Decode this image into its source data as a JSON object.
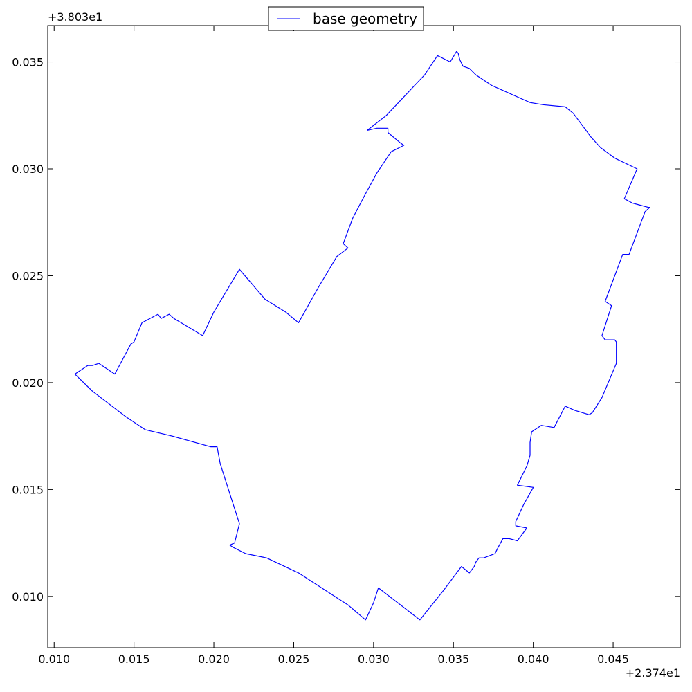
{
  "chart_data": {
    "type": "line",
    "title": "",
    "xlabel": "",
    "ylabel": "",
    "x_offset_label": "+2.374e1",
    "y_offset_label": "+3.803e1",
    "xlim": [
      0.0096,
      0.0492
    ],
    "ylim": [
      0.0076,
      0.0367
    ],
    "xticks": [
      0.01,
      0.015,
      0.02,
      0.025,
      0.03,
      0.035,
      0.04,
      0.045
    ],
    "xtick_labels": [
      "0.010",
      "0.015",
      "0.020",
      "0.025",
      "0.030",
      "0.035",
      "0.040",
      "0.045"
    ],
    "yticks": [
      0.01,
      0.015,
      0.02,
      0.025,
      0.03,
      0.035
    ],
    "ytick_labels": [
      "0.010",
      "0.015",
      "0.020",
      "0.025",
      "0.030",
      "0.035"
    ],
    "grid": false,
    "legend": {
      "position": "top-center"
    },
    "series": [
      {
        "name": "base geometry",
        "color": "#0000ff",
        "points": [
          [
            0.0113,
            0.0204
          ],
          [
            0.0121,
            0.0208
          ],
          [
            0.0124,
            0.0208
          ],
          [
            0.0128,
            0.0209
          ],
          [
            0.0138,
            0.0204
          ],
          [
            0.0148,
            0.0218
          ],
          [
            0.015,
            0.0219
          ],
          [
            0.0155,
            0.0228
          ],
          [
            0.0165,
            0.0232
          ],
          [
            0.0167,
            0.023
          ],
          [
            0.0172,
            0.0232
          ],
          [
            0.0175,
            0.023
          ],
          [
            0.0193,
            0.0222
          ],
          [
            0.02,
            0.0233
          ],
          [
            0.0216,
            0.0253
          ],
          [
            0.0232,
            0.0239
          ],
          [
            0.0245,
            0.0233
          ],
          [
            0.0253,
            0.0228
          ],
          [
            0.0265,
            0.0244
          ],
          [
            0.0277,
            0.0259
          ],
          [
            0.0284,
            0.0263
          ],
          [
            0.0281,
            0.0265
          ],
          [
            0.0287,
            0.0277
          ],
          [
            0.0294,
            0.0287
          ],
          [
            0.0302,
            0.0298
          ],
          [
            0.0311,
            0.0308
          ],
          [
            0.0319,
            0.0311
          ],
          [
            0.0317,
            0.0312
          ],
          [
            0.0309,
            0.0317
          ],
          [
            0.0309,
            0.0319
          ],
          [
            0.0306,
            0.0319
          ],
          [
            0.0302,
            0.0319
          ],
          [
            0.0296,
            0.0318
          ],
          [
            0.0308,
            0.0325
          ],
          [
            0.0332,
            0.0344
          ],
          [
            0.034,
            0.0353
          ],
          [
            0.0348,
            0.035
          ],
          [
            0.0352,
            0.0355
          ],
          [
            0.0353,
            0.0354
          ],
          [
            0.0354,
            0.0351
          ],
          [
            0.0356,
            0.0348
          ],
          [
            0.036,
            0.0347
          ],
          [
            0.0364,
            0.0344
          ],
          [
            0.0374,
            0.0339
          ],
          [
            0.0398,
            0.0331
          ],
          [
            0.0406,
            0.033
          ],
          [
            0.042,
            0.0329
          ],
          [
            0.0425,
            0.0326
          ],
          [
            0.0436,
            0.0315
          ],
          [
            0.0442,
            0.031
          ],
          [
            0.0451,
            0.0305
          ],
          [
            0.0465,
            0.03
          ],
          [
            0.0457,
            0.0286
          ],
          [
            0.0462,
            0.0284
          ],
          [
            0.0467,
            0.0283
          ],
          [
            0.0472,
            0.0282
          ],
          [
            0.0473,
            0.0282
          ],
          [
            0.047,
            0.028
          ],
          [
            0.046,
            0.026
          ],
          [
            0.0456,
            0.026
          ],
          [
            0.0451,
            0.025
          ],
          [
            0.0445,
            0.0238
          ],
          [
            0.0449,
            0.0236
          ],
          [
            0.0443,
            0.0222
          ],
          [
            0.0445,
            0.022
          ],
          [
            0.0451,
            0.022
          ],
          [
            0.0452,
            0.0219
          ],
          [
            0.0452,
            0.0209
          ],
          [
            0.0443,
            0.0193
          ],
          [
            0.0437,
            0.0186
          ],
          [
            0.0435,
            0.0185
          ],
          [
            0.0426,
            0.0187
          ],
          [
            0.042,
            0.0189
          ],
          [
            0.0413,
            0.0179
          ],
          [
            0.0405,
            0.018
          ],
          [
            0.0399,
            0.0177
          ],
          [
            0.0398,
            0.0172
          ],
          [
            0.0398,
            0.0166
          ],
          [
            0.0396,
            0.0161
          ],
          [
            0.039,
            0.0152
          ],
          [
            0.04,
            0.0151
          ],
          [
            0.0394,
            0.0143
          ],
          [
            0.0389,
            0.0135
          ],
          [
            0.0389,
            0.0133
          ],
          [
            0.0396,
            0.0132
          ],
          [
            0.039,
            0.0126
          ],
          [
            0.0385,
            0.0127
          ],
          [
            0.0381,
            0.0127
          ],
          [
            0.0378,
            0.0123
          ],
          [
            0.0376,
            0.012
          ],
          [
            0.0369,
            0.0118
          ],
          [
            0.0366,
            0.0118
          ],
          [
            0.0364,
            0.0116
          ],
          [
            0.0363,
            0.0114
          ],
          [
            0.036,
            0.0111
          ],
          [
            0.0355,
            0.0114
          ],
          [
            0.0344,
            0.0103
          ],
          [
            0.0329,
            0.0089
          ],
          [
            0.0303,
            0.0104
          ],
          [
            0.03,
            0.0097
          ],
          [
            0.0295,
            0.0089
          ],
          [
            0.0284,
            0.0096
          ],
          [
            0.0253,
            0.0111
          ],
          [
            0.0233,
            0.0118
          ],
          [
            0.022,
            0.012
          ],
          [
            0.0212,
            0.0123
          ],
          [
            0.021,
            0.0124
          ],
          [
            0.0213,
            0.0125
          ],
          [
            0.0216,
            0.0134
          ],
          [
            0.0204,
            0.0162
          ],
          [
            0.0202,
            0.017
          ],
          [
            0.0198,
            0.017
          ],
          [
            0.0174,
            0.0175
          ],
          [
            0.0157,
            0.0178
          ],
          [
            0.0145,
            0.0184
          ],
          [
            0.0124,
            0.0196
          ],
          [
            0.0113,
            0.0204
          ]
        ]
      }
    ]
  }
}
